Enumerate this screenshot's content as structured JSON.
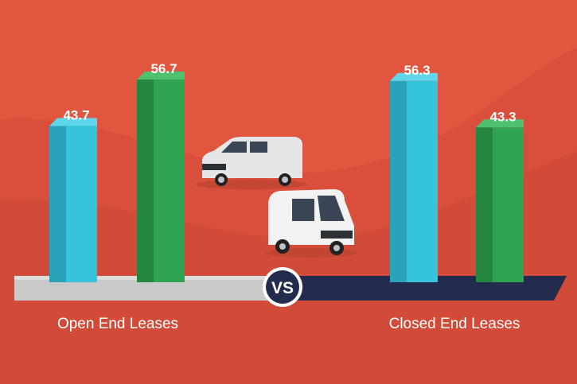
{
  "chart_data": {
    "type": "bar",
    "categories": [
      "Open End Leases",
      "Closed End Leases"
    ],
    "series": [
      {
        "values": [
          43.7,
          43.3
        ]
      },
      {
        "values": [
          56.7,
          56.3
        ]
      }
    ],
    "bars": [
      {
        "category": "Open End Leases",
        "value": 43.7,
        "label": "43.7",
        "color": "blue"
      },
      {
        "category": "Open End Leases",
        "value": 56.7,
        "label": "56.7",
        "color": "green"
      },
      {
        "category": "Closed End Leases",
        "value": 56.3,
        "label": "56.3",
        "color": "blue"
      },
      {
        "category": "Closed End Leases",
        "value": 43.3,
        "label": "43.3",
        "color": "green"
      }
    ],
    "ylim": [
      0,
      60
    ],
    "grid": false,
    "legend": "none"
  },
  "center_badge": "VS",
  "illustrations": [
    "small-van",
    "cargo-van"
  ],
  "colors": {
    "background": "#e2553f",
    "background_wave": "#d44d3a",
    "bar_blue": "#36c3dc",
    "bar_green": "#2fa552",
    "platform_left": "#cfcfcf",
    "platform_right": "#232c4c"
  }
}
